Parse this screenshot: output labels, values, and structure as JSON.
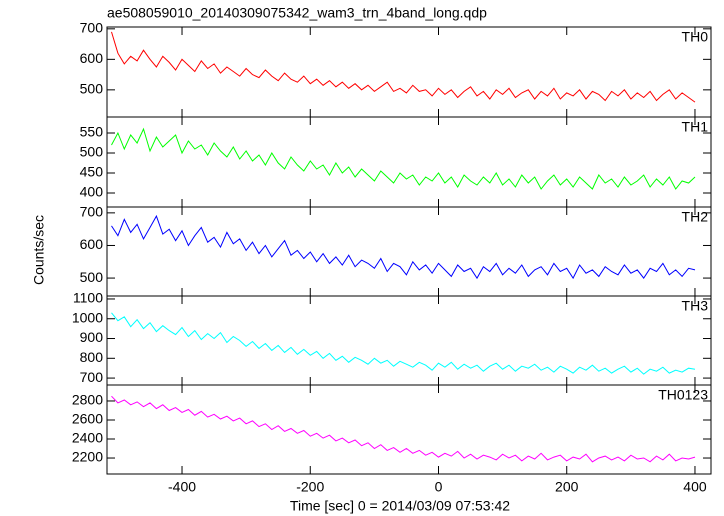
{
  "chart_data": {
    "type": "line",
    "title": "ae508059010_20140309075342_wam3_trn_4band_long.qdp",
    "xlabel": "Time [sec] 0 = 2014/03/09 07:53:42",
    "ylabel": "Counts/sec",
    "xlim": [
      -517,
      425
    ],
    "xticks": [
      -400,
      -200,
      0,
      200,
      400
    ],
    "x": [
      -510,
      -500,
      -490,
      -480,
      -470,
      -460,
      -450,
      -440,
      -430,
      -420,
      -410,
      -400,
      -390,
      -380,
      -370,
      -360,
      -350,
      -340,
      -330,
      -320,
      -310,
      -300,
      -290,
      -280,
      -270,
      -260,
      -250,
      -240,
      -230,
      -220,
      -210,
      -200,
      -190,
      -180,
      -170,
      -160,
      -150,
      -140,
      -130,
      -120,
      -110,
      -100,
      -90,
      -80,
      -70,
      -60,
      -50,
      -40,
      -30,
      -20,
      -10,
      0,
      10,
      20,
      30,
      40,
      50,
      60,
      70,
      80,
      90,
      100,
      110,
      120,
      130,
      140,
      150,
      160,
      170,
      180,
      190,
      200,
      210,
      220,
      230,
      240,
      250,
      260,
      270,
      280,
      290,
      300,
      310,
      320,
      330,
      340,
      350,
      360,
      370,
      380,
      390,
      400
    ],
    "series": [
      {
        "name": "TH0",
        "color": "#ff0000",
        "ylim": [
          411,
          706
        ],
        "yticks": [
          500,
          600,
          700
        ],
        "values": [
          690,
          620,
          585,
          610,
          595,
          630,
          600,
          575,
          610,
          590,
          565,
          600,
          580,
          560,
          595,
          570,
          585,
          555,
          575,
          560,
          545,
          570,
          550,
          540,
          565,
          545,
          530,
          555,
          535,
          525,
          545,
          520,
          535,
          515,
          530,
          510,
          525,
          505,
          520,
          500,
          515,
          495,
          510,
          525,
          495,
          505,
          490,
          515,
          495,
          500,
          480,
          505,
          485,
          500,
          475,
          495,
          510,
          480,
          495,
          470,
          500,
          485,
          505,
          475,
          490,
          500,
          470,
          495,
          480,
          505,
          470,
          490,
          480,
          500,
          470,
          495,
          485,
          465,
          495,
          480,
          500,
          470,
          490,
          475,
          495,
          465,
          485,
          500,
          470,
          490,
          475,
          460
        ]
      },
      {
        "name": "TH1",
        "color": "#00ff00",
        "ylim": [
          365,
          590
        ],
        "yticks": [
          400,
          450,
          500,
          550
        ],
        "values": [
          520,
          550,
          510,
          545,
          525,
          560,
          505,
          540,
          515,
          530,
          545,
          500,
          530,
          510,
          520,
          495,
          525,
          505,
          490,
          515,
          485,
          505,
          480,
          495,
          470,
          500,
          475,
          460,
          490,
          470,
          455,
          480,
          460,
          470,
          445,
          475,
          450,
          465,
          440,
          460,
          445,
          430,
          455,
          440,
          425,
          450,
          435,
          445,
          420,
          440,
          430,
          450,
          425,
          440,
          415,
          445,
          430,
          420,
          440,
          425,
          450,
          420,
          435,
          415,
          445,
          425,
          440,
          410,
          430,
          445,
          420,
          435,
          415,
          440,
          425,
          410,
          445,
          425,
          435,
          415,
          440,
          420,
          430,
          445,
          415,
          435,
          420,
          440,
          410,
          430,
          425,
          440
        ]
      },
      {
        "name": "TH2",
        "color": "#0000ff",
        "ylim": [
          445,
          718
        ],
        "yticks": [
          500,
          600,
          700
        ],
        "values": [
          660,
          630,
          680,
          640,
          665,
          620,
          655,
          690,
          635,
          650,
          615,
          645,
          600,
          630,
          655,
          610,
          625,
          595,
          640,
          605,
          620,
          585,
          610,
          575,
          600,
          565,
          590,
          615,
          570,
          585,
          560,
          580,
          550,
          575,
          545,
          565,
          540,
          570,
          535,
          555,
          545,
          530,
          560,
          520,
          545,
          535,
          510,
          550,
          525,
          540,
          515,
          545,
          525,
          505,
          540,
          520,
          530,
          500,
          535,
          520,
          545,
          510,
          530,
          515,
          540,
          505,
          525,
          535,
          510,
          545,
          520,
          530,
          500,
          540,
          515,
          525,
          505,
          535,
          520,
          510,
          540,
          515,
          525,
          500,
          530,
          520,
          545,
          510,
          525,
          505,
          530,
          525
        ]
      },
      {
        "name": "TH3",
        "color": "#00ffff",
        "ylim": [
          665,
          1115
        ],
        "yticks": [
          700,
          800,
          900,
          1000,
          1100
        ],
        "values": [
          1030,
          990,
          1010,
          960,
          995,
          950,
          980,
          935,
          965,
          940,
          920,
          955,
          910,
          940,
          895,
          925,
          900,
          930,
          880,
          910,
          890,
          860,
          885,
          850,
          875,
          840,
          865,
          830,
          855,
          820,
          845,
          815,
          835,
          800,
          825,
          790,
          810,
          780,
          805,
          790,
          770,
          800,
          775,
          790,
          760,
          785,
          770,
          755,
          780,
          765,
          740,
          775,
          755,
          780,
          745,
          770,
          750,
          765,
          735,
          760,
          775,
          745,
          765,
          735,
          760,
          750,
          770,
          740,
          755,
          730,
          760,
          745,
          725,
          755,
          740,
          765,
          735,
          750,
          725,
          745,
          760,
          730,
          750,
          720,
          745,
          735,
          755,
          725,
          740,
          730,
          750,
          745
        ]
      },
      {
        "name": "TH0123",
        "color": "#ff00ff",
        "ylim": [
          2032,
          2968
        ],
        "yticks": [
          2200,
          2400,
          2600,
          2800
        ],
        "values": [
          2850,
          2780,
          2810,
          2760,
          2790,
          2740,
          2780,
          2720,
          2760,
          2700,
          2730,
          2680,
          2710,
          2650,
          2690,
          2630,
          2660,
          2610,
          2640,
          2590,
          2620,
          2560,
          2590,
          2530,
          2560,
          2500,
          2540,
          2480,
          2510,
          2460,
          2490,
          2430,
          2460,
          2410,
          2440,
          2380,
          2410,
          2360,
          2390,
          2330,
          2360,
          2300,
          2340,
          2280,
          2310,
          2260,
          2300,
          2250,
          2280,
          2230,
          2260,
          2210,
          2250,
          2220,
          2270,
          2200,
          2240,
          2190,
          2230,
          2210,
          2180,
          2240,
          2200,
          2230,
          2170,
          2220,
          2190,
          2250,
          2180,
          2210,
          2230,
          2170,
          2210,
          2190,
          2240,
          2160,
          2200,
          2220,
          2180,
          2210,
          2170,
          2230,
          2190,
          2200,
          2160,
          2220,
          2180,
          2240,
          2170,
          2200,
          2190,
          2210
        ]
      }
    ]
  }
}
